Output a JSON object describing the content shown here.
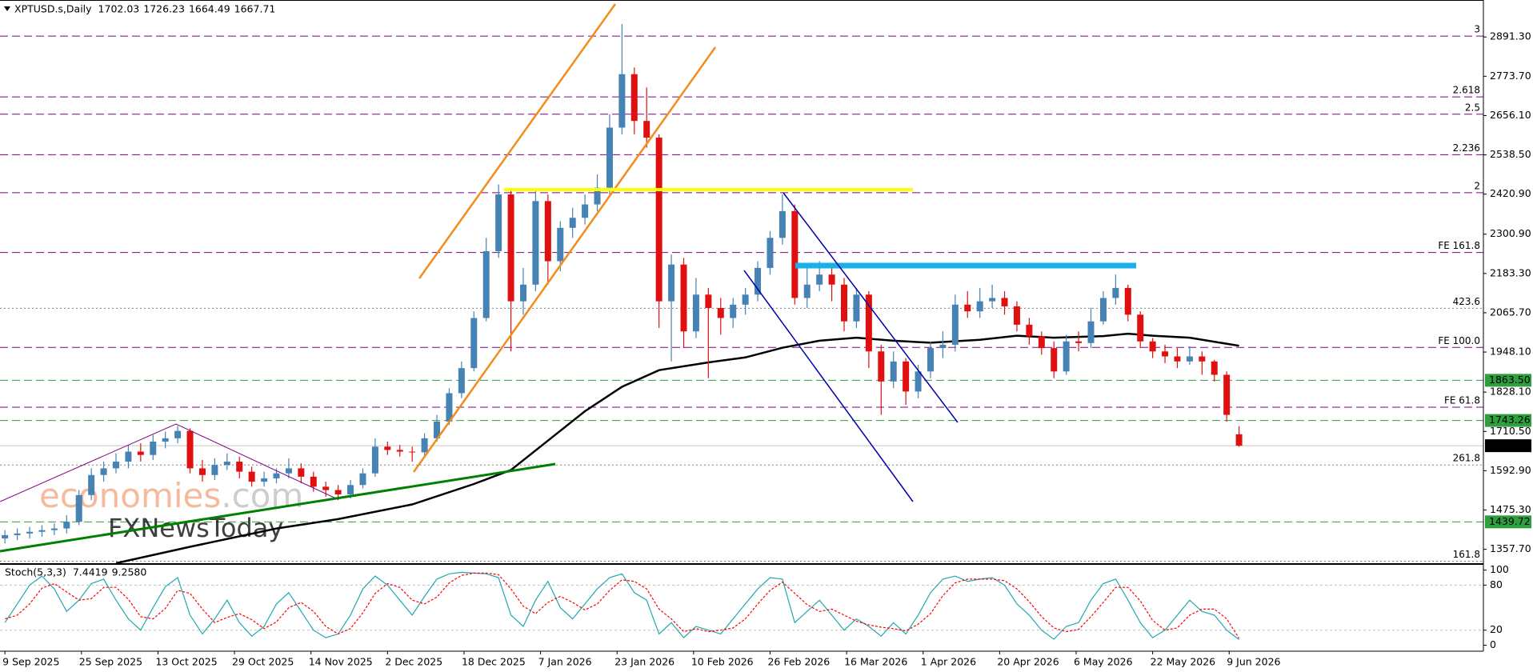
{
  "chart_data": [
    {
      "type": "candlestick",
      "title": "XPTUSD.s,Daily",
      "open": [
        1390,
        1400,
        1405,
        1410,
        1415,
        1420,
        1440,
        1520,
        1580,
        1600,
        1620,
        1650,
        1640,
        1680,
        1690,
        1712,
        1600,
        1580,
        1610,
        1620,
        1590,
        1560,
        1570,
        1585,
        1600,
        1575,
        1545,
        1535,
        1522,
        1550,
        1585,
        1665,
        1655,
        1650,
        1648,
        1690,
        1740,
        1825,
        1900,
        2050,
        2250,
        2420,
        2100,
        2150,
        2400,
        2220,
        2320,
        2350,
        2390,
        2440,
        2620,
        2780,
        2640,
        2590,
        2100,
        2210,
        2010,
        2120,
        2080,
        2050,
        2090,
        2120,
        2200,
        2290,
        2370,
        2110,
        2150,
        2180,
        2150,
        2040,
        2120,
        1950,
        1860,
        1920,
        1830,
        1890,
        1960,
        1970,
        2090,
        2070,
        2100,
        2110,
        2085,
        2030,
        1995,
        1960,
        1890,
        1980,
        1975,
        2040,
        2110,
        2140,
        2060,
        1980,
        1950,
        1935,
        1920,
        1935,
        1920,
        1880,
        1702.03
      ],
      "high": [
        1415,
        1420,
        1425,
        1430,
        1435,
        1460,
        1535,
        1600,
        1620,
        1645,
        1670,
        1675,
        1700,
        1710,
        1727,
        1720,
        1625,
        1630,
        1645,
        1635,
        1605,
        1590,
        1600,
        1630,
        1615,
        1590,
        1560,
        1550,
        1565,
        1600,
        1690,
        1680,
        1670,
        1665,
        1705,
        1760,
        1840,
        1920,
        2070,
        2290,
        2450,
        2430,
        2200,
        2430,
        2420,
        2340,
        2380,
        2420,
        2480,
        2660,
        2930,
        2800,
        2740,
        2600,
        2240,
        2230,
        2170,
        2140,
        2110,
        2110,
        2140,
        2220,
        2310,
        2420,
        2390,
        2200,
        2220,
        2200,
        2170,
        2140,
        2130,
        1970,
        1950,
        1930,
        1910,
        1980,
        2010,
        2120,
        2130,
        2140,
        2150,
        2130,
        2100,
        2050,
        2010,
        1980,
        2000,
        2010,
        2080,
        2130,
        2180,
        2150,
        2070,
        1990,
        1970,
        1960,
        1965,
        1950,
        1925,
        1890,
        1726.23
      ],
      "low": [
        1375,
        1385,
        1390,
        1395,
        1400,
        1405,
        1430,
        1505,
        1560,
        1585,
        1600,
        1620,
        1625,
        1660,
        1675,
        1585,
        1560,
        1565,
        1595,
        1570,
        1545,
        1545,
        1555,
        1570,
        1555,
        1530,
        1515,
        1505,
        1510,
        1540,
        1575,
        1640,
        1635,
        1620,
        1635,
        1680,
        1730,
        1810,
        1890,
        2040,
        2230,
        1950,
        2060,
        2130,
        2150,
        2190,
        2290,
        2330,
        2370,
        2420,
        2600,
        2600,
        2560,
        2020,
        1920,
        1960,
        1990,
        1870,
        2000,
        2020,
        2060,
        2100,
        2180,
        2270,
        2090,
        2080,
        2130,
        2100,
        2010,
        2020,
        1900,
        1760,
        1840,
        1790,
        1810,
        1870,
        1930,
        1950,
        2050,
        2050,
        2080,
        2060,
        2010,
        1970,
        1940,
        1870,
        1880,
        1950,
        1960,
        2030,
        2090,
        2040,
        1960,
        1930,
        1915,
        1900,
        1910,
        1880,
        1860,
        1740,
        1664.49
      ],
      "close": [
        1400,
        1405,
        1410,
        1415,
        1420,
        1440,
        1520,
        1580,
        1600,
        1620,
        1650,
        1640,
        1680,
        1690,
        1712,
        1600,
        1580,
        1610,
        1620,
        1590,
        1560,
        1570,
        1585,
        1600,
        1575,
        1545,
        1535,
        1522,
        1550,
        1585,
        1665,
        1655,
        1650,
        1648,
        1690,
        1740,
        1825,
        1900,
        2050,
        2250,
        2420,
        2100,
        2150,
        2400,
        2220,
        2320,
        2350,
        2390,
        2440,
        2620,
        2780,
        2640,
        2590,
        2100,
        2210,
        2010,
        2120,
        2080,
        2050,
        2090,
        2120,
        2200,
        2290,
        2370,
        2110,
        2150,
        2180,
        2150,
        2040,
        2120,
        1950,
        1860,
        1920,
        1830,
        1890,
        1960,
        1970,
        2090,
        2070,
        2100,
        2110,
        2085,
        2030,
        1995,
        1960,
        1890,
        1980,
        1975,
        2040,
        2110,
        2140,
        2060,
        1980,
        1950,
        1935,
        1920,
        1935,
        1920,
        1880,
        1760,
        1667.71
      ],
      "up_color": "#4682b4",
      "down_color": "#e01010",
      "ma": {
        "color": "#000000",
        "x": [
          9,
          15,
          22,
          27,
          33,
          38,
          41,
          44,
          47,
          50,
          53,
          57,
          60,
          63,
          66,
          69,
          72,
          75,
          79,
          82,
          85,
          89,
          91,
          93,
          96,
          100
        ],
        "values": [
          1316,
          1365,
          1420,
          1448,
          1492,
          1553,
          1595,
          1683,
          1771,
          1844,
          1894,
          1917,
          1932,
          1961,
          1982,
          1991,
          1982,
          1976,
          1985,
          1997,
          1991,
          1996,
          2003,
          1997,
          1991,
          1967
        ]
      },
      "xlim": [
        -0.4,
        119.8
      ],
      "ylim": [
        1316,
        3002
      ],
      "yticks": [
        {
          "value": 2891.3,
          "label": "2891.30"
        },
        {
          "value": 2773.7,
          "label": "2773.70"
        },
        {
          "value": 2656.1,
          "label": "2656.10"
        },
        {
          "value": 2538.5,
          "label": "2538.50"
        },
        {
          "value": 2420.9,
          "label": "2420.90"
        },
        {
          "value": 2300.9,
          "label": "2300.90"
        },
        {
          "value": 2183.3,
          "label": "2183.30"
        },
        {
          "value": 2065.7,
          "label": "2065.70"
        },
        {
          "value": 1948.1,
          "label": "1948.10"
        },
        {
          "value": 1828.1,
          "label": "1828.10"
        },
        {
          "value": 1710.5,
          "label": "1710.50"
        },
        {
          "value": 1592.9,
          "label": "1592.90"
        },
        {
          "value": 1475.3,
          "label": "1475.30"
        },
        {
          "value": 1357.7,
          "label": "1357.70"
        }
      ],
      "xticks": [
        {
          "value": 0,
          "label": "9 Sep 2025"
        },
        {
          "value": 6.2,
          "label": "25 Sep 2025"
        },
        {
          "value": 12.4,
          "label": "13 Oct 2025"
        },
        {
          "value": 18.6,
          "label": "29 Oct 2025"
        },
        {
          "value": 24.8,
          "label": "14 Nov 2025"
        },
        {
          "value": 31,
          "label": "2 Dec 2025"
        },
        {
          "value": 37.2,
          "label": "18 Dec 2025"
        },
        {
          "value": 43.4,
          "label": "7 Jan 2026"
        },
        {
          "value": 49.6,
          "label": "23 Jan 2026"
        },
        {
          "value": 55.8,
          "label": "10 Feb 2026"
        },
        {
          "value": 62,
          "label": "26 Feb 2026"
        },
        {
          "value": 68.2,
          "label": "16 Mar 2026"
        },
        {
          "value": 74.4,
          "label": "1 Apr 2026"
        },
        {
          "value": 80.6,
          "label": "20 Apr 2026"
        },
        {
          "value": 86.8,
          "label": "6 May 2026"
        },
        {
          "value": 93,
          "label": "22 May 2026"
        },
        {
          "value": 99.2,
          "label": "9 Jun 2026"
        }
      ],
      "levels": [
        {
          "value": 2894,
          "label": "3",
          "color": "#800080",
          "style": "dash"
        },
        {
          "value": 2712,
          "label": "2.618",
          "color": "#800080",
          "style": "dash"
        },
        {
          "value": 2660,
          "label": "2.5",
          "color": "#800080",
          "style": "dash"
        },
        {
          "value": 2539,
          "label": "2.236",
          "color": "#800080",
          "style": "dash"
        },
        {
          "value": 2425,
          "label": "2",
          "color": "#800080",
          "style": "dash"
        },
        {
          "value": 2246,
          "label": "FE 161.8",
          "color": "#800080",
          "style": "dash"
        },
        {
          "value": 2079,
          "label": "423.6",
          "color": "#808080",
          "style": "dot"
        },
        {
          "value": 1962,
          "label": "FE 100.0",
          "color": "#800080",
          "style": "dash"
        },
        {
          "value": 1783,
          "label": "FE 61.8",
          "color": "#800080",
          "style": "dash"
        },
        {
          "value": 1610,
          "label": "261.8",
          "color": "#808080",
          "style": "dot"
        },
        {
          "value": 1322,
          "label": "161.8",
          "color": "#808080",
          "style": "dot"
        }
      ],
      "price_marks": [
        {
          "value": 1863.5,
          "label": "1863.50",
          "color": "#2e9e3e",
          "text_color": "#000000",
          "style": "dash"
        },
        {
          "value": 1743.26,
          "label": "1743.26",
          "color": "#2e9e3e",
          "text_color": "#000000",
          "style": "dash"
        },
        {
          "value": 1667.71,
          "label": "1667.71",
          "color": "#000000",
          "text_color": "#ffffff",
          "style": "solid"
        },
        {
          "value": 1439.72,
          "label": "1439.72",
          "color": "#2e9e3e",
          "text_color": "#000000",
          "style": "dash"
        }
      ],
      "watermark": [
        "economies",
        ".com",
        "FXNewsToday"
      ]
    },
    {
      "type": "stochastic",
      "title": "Stoch(5,3,3)",
      "series": [
        {
          "color": "#20a8b0",
          "dash": false,
          "values": [
            30,
            55,
            80,
            92,
            75,
            45,
            60,
            82,
            88,
            60,
            35,
            20,
            50,
            78,
            90,
            40,
            15,
            35,
            60,
            30,
            12,
            25,
            55,
            70,
            45,
            20,
            10,
            15,
            40,
            75,
            92,
            80,
            60,
            40,
            65,
            88,
            95,
            97,
            96,
            95,
            90,
            40,
            25,
            60,
            85,
            50,
            35,
            55,
            75,
            90,
            95,
            70,
            60,
            15,
            30,
            10,
            25,
            20,
            15,
            35,
            55,
            75,
            90,
            88,
            30,
            45,
            60,
            40,
            20,
            35,
            25,
            12,
            30,
            15,
            40,
            70,
            88,
            92,
            85,
            88,
            90,
            80,
            55,
            40,
            20,
            8,
            25,
            30,
            60,
            82,
            88,
            60,
            30,
            10,
            20,
            40,
            60,
            45,
            40,
            20,
            7.4419
          ]
        },
        {
          "color": "#ff0000",
          "dash": true,
          "values": [
            35,
            40,
            55,
            76,
            82,
            71,
            60,
            62,
            77,
            77,
            61,
            38,
            35,
            49,
            73,
            69,
            48,
            30,
            37,
            42,
            34,
            22,
            31,
            50,
            57,
            45,
            25,
            15,
            22,
            43,
            69,
            82,
            77,
            60,
            55,
            64,
            83,
            93,
            96,
            96,
            94,
            75,
            52,
            42,
            57,
            65,
            57,
            47,
            55,
            73,
            87,
            85,
            75,
            48,
            35,
            18,
            22,
            18,
            20,
            23,
            35,
            55,
            73,
            84,
            69,
            54,
            45,
            48,
            40,
            32,
            27,
            24,
            22,
            19,
            28,
            42,
            66,
            83,
            88,
            88,
            88,
            86,
            75,
            58,
            38,
            23,
            18,
            21,
            38,
            57,
            77,
            77,
            59,
            33,
            20,
            23,
            40,
            48,
            48,
            35,
            9.258
          ]
        }
      ],
      "readout_label": "9.2580",
      "ylim": [
        -8,
        106
      ],
      "yticks": [
        0,
        20,
        80,
        100
      ],
      "levels": [
        20,
        80
      ]
    }
  ]
}
